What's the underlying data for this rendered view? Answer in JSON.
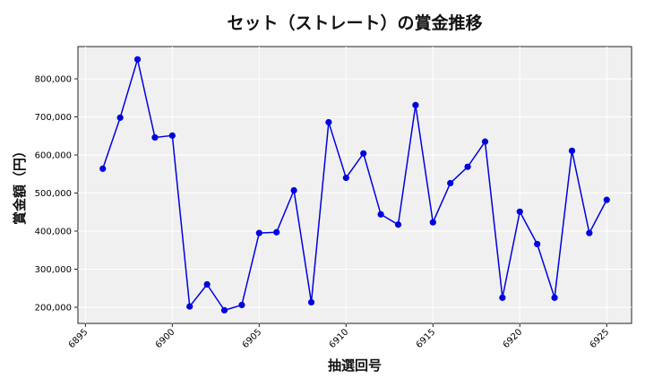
{
  "chart_data": {
    "type": "line",
    "title": "セット（ストレート）の賞金推移",
    "xlabel": "抽選回号",
    "ylabel": "賞金額（円）",
    "xlim": [
      6894.57,
      6926.43
    ],
    "ylim": [
      157600,
      884700
    ],
    "xticks": [
      6895,
      6900,
      6905,
      6910,
      6915,
      6920,
      6925
    ],
    "yticks": [
      200000,
      300000,
      400000,
      500000,
      600000,
      700000,
      800000
    ],
    "ytick_labels": [
      "200,000",
      "300,000",
      "400,000",
      "500,000",
      "600,000",
      "700,000",
      "800,000"
    ],
    "grid": true,
    "line_color": "#0000dd",
    "background_color": "#f0f0f0",
    "x": [
      6896,
      6897,
      6898,
      6899,
      6900,
      6901,
      6902,
      6903,
      6904,
      6905,
      6906,
      6907,
      6908,
      6909,
      6910,
      6911,
      6912,
      6913,
      6914,
      6915,
      6916,
      6917,
      6918,
      6919,
      6920,
      6921,
      6922,
      6923,
      6924,
      6925
    ],
    "values": [
      564000,
      698000,
      851000,
      646000,
      651000,
      202000,
      260000,
      192000,
      206000,
      395000,
      397000,
      507000,
      213000,
      686000,
      540000,
      604000,
      444000,
      417000,
      731000,
      423000,
      526000,
      569000,
      635000,
      225000,
      451000,
      366000,
      225000,
      611000,
      395000,
      482000
    ]
  }
}
